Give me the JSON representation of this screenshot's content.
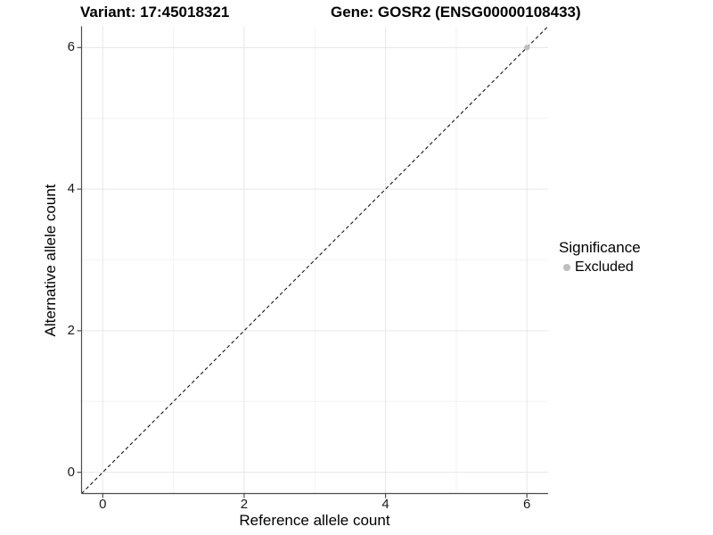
{
  "header": {
    "variant_title": "Variant: 17:45018321",
    "gene_title": "Gene: GOSR2 (ENSG00000108433)"
  },
  "chart_data": {
    "type": "scatter",
    "xlabel": "Reference allele count",
    "ylabel": "Alternative allele count",
    "xlim": [
      -0.3,
      6.3
    ],
    "ylim": [
      -0.3,
      6.3
    ],
    "x_ticks": [
      0,
      2,
      4,
      6
    ],
    "y_ticks": [
      0,
      2,
      4,
      6
    ],
    "x_tick_labels": [
      "0",
      "2",
      "4",
      "6"
    ],
    "y_tick_labels": [
      "0",
      "2",
      "4",
      "6"
    ],
    "x_minor_ticks": [
      1,
      3,
      5
    ],
    "y_minor_ticks": [
      1,
      3,
      5
    ],
    "grid": true,
    "identity_line": {
      "style": "dashed",
      "color": "#000000",
      "from": [
        -0.3,
        -0.3
      ],
      "to": [
        6.3,
        6.3
      ]
    },
    "series": [
      {
        "name": "Excluded",
        "color": "#bebebe",
        "points": [
          {
            "x": 6,
            "y": 6
          }
        ]
      }
    ],
    "legend": {
      "title": "Significance",
      "position": "right",
      "items": [
        {
          "label": "Excluded",
          "color": "#bebebe"
        }
      ]
    },
    "colors": {
      "axis_line": "#4d4d4d",
      "tick_mark": "#4d4d4d",
      "grid_major": "#e6e6e6",
      "grid_minor": "#f2f2f2",
      "background": "#ffffff"
    }
  }
}
